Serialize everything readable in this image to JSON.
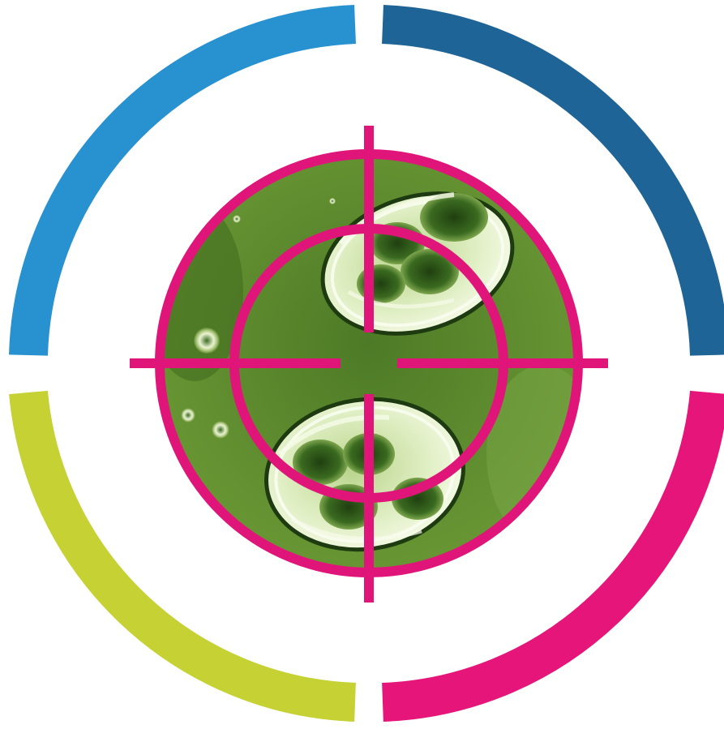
{
  "graphic": {
    "kind": "target-logo",
    "center_image": "microscope-cells",
    "colors": {
      "background": "#ffffff",
      "arc_top_left": "#2891d0",
      "arc_top_right": "#1f6496",
      "arc_bottom_left": "#c6d133",
      "arc_bottom_right": "#e5157a",
      "crosshair": "#e0157a",
      "microscope_field": "#5e8a2e",
      "cell_highlight": "#eef5d8",
      "cell_dark": "#2c5418"
    }
  }
}
